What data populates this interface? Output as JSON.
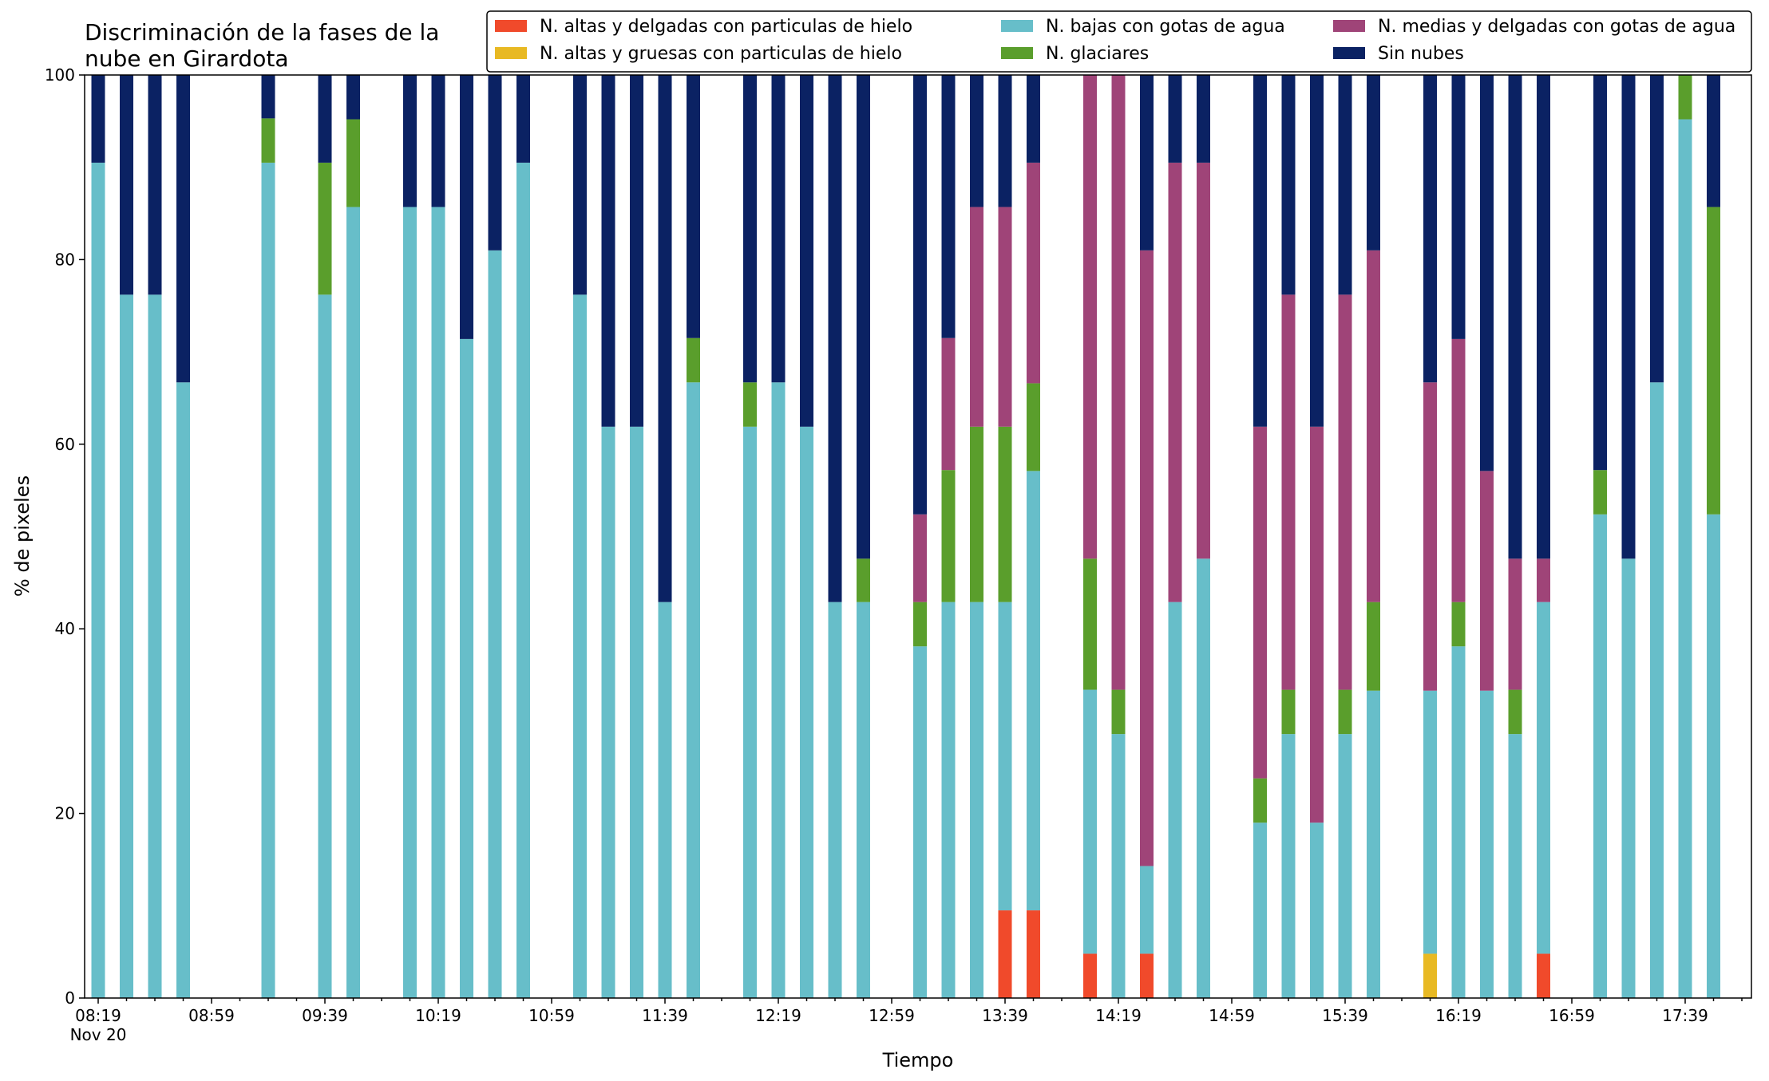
{
  "chart_data": {
    "type": "bar",
    "stacked": true,
    "title_lines": [
      "Discriminación de la fases de la",
      "nube en Girardota"
    ],
    "xlabel": "Tiempo",
    "ylabel": "% de pixeles",
    "ylim": [
      0,
      100
    ],
    "yticks": [
      "0",
      "20",
      "40",
      "60",
      "80",
      "100"
    ],
    "xtick_labels": [
      "08:19",
      "08:59",
      "09:39",
      "10:19",
      "10:59",
      "11:39",
      "12:19",
      "12:59",
      "13:39",
      "14:19",
      "14:59",
      "15:39",
      "16:19",
      "16:59",
      "17:39"
    ],
    "xtick_sublabel": "Nov 20",
    "legend_position": "top-right",
    "series": [
      {
        "name": "N. altas y delgadas con particulas de hielo",
        "color": "#f04a2b"
      },
      {
        "name": "N. altas y gruesas con particulas de hielo",
        "color": "#e8b923"
      },
      {
        "name": "N. bajas con gotas de agua",
        "color": "#67bec9"
      },
      {
        "name": "N. glaciares",
        "color": "#5a9e2c"
      },
      {
        "name": "N. medias y delgadas con gotas de agua",
        "color": "#9f4478"
      },
      {
        "name": "Sin nubes",
        "color": "#0b2263"
      }
    ],
    "bars": [
      {
        "slot": 0,
        "values": [
          0,
          0,
          90.5,
          0,
          0,
          9.5
        ]
      },
      {
        "slot": 1,
        "values": [
          0,
          0,
          76.2,
          0,
          0,
          23.8
        ]
      },
      {
        "slot": 2,
        "values": [
          0,
          0,
          76.2,
          0,
          0,
          23.8
        ]
      },
      {
        "slot": 3,
        "values": [
          0,
          0,
          66.7,
          0,
          0,
          33.3
        ]
      },
      {
        "slot": 6,
        "values": [
          0,
          0,
          90.5,
          4.8,
          0,
          4.7
        ]
      },
      {
        "slot": 8,
        "values": [
          0,
          0,
          76.2,
          14.3,
          0,
          9.5
        ]
      },
      {
        "slot": 9,
        "values": [
          0,
          0,
          85.7,
          9.5,
          0,
          4.8
        ]
      },
      {
        "slot": 11,
        "values": [
          0,
          0,
          85.7,
          0,
          0,
          14.3
        ]
      },
      {
        "slot": 12,
        "values": [
          0,
          0,
          85.7,
          0,
          0,
          14.3
        ]
      },
      {
        "slot": 13,
        "values": [
          0,
          0,
          71.4,
          0,
          0,
          28.6
        ]
      },
      {
        "slot": 14,
        "values": [
          0,
          0,
          81.0,
          0,
          0,
          19.0
        ]
      },
      {
        "slot": 15,
        "values": [
          0,
          0,
          90.5,
          0,
          0,
          9.5
        ]
      },
      {
        "slot": 17,
        "values": [
          0,
          0,
          76.2,
          0,
          0,
          23.8
        ]
      },
      {
        "slot": 18,
        "values": [
          0,
          0,
          61.9,
          0,
          0,
          38.1
        ]
      },
      {
        "slot": 19,
        "values": [
          0,
          0,
          61.9,
          0,
          0,
          38.1
        ]
      },
      {
        "slot": 20,
        "values": [
          0,
          0,
          42.9,
          0,
          0,
          57.1
        ]
      },
      {
        "slot": 21,
        "values": [
          0,
          0,
          66.7,
          4.8,
          0,
          28.5
        ]
      },
      {
        "slot": 23,
        "values": [
          0,
          0,
          61.9,
          4.8,
          0,
          33.3
        ]
      },
      {
        "slot": 24,
        "values": [
          0,
          0,
          66.7,
          0,
          0,
          33.3
        ]
      },
      {
        "slot": 25,
        "values": [
          0,
          0,
          61.9,
          0,
          0,
          38.1
        ]
      },
      {
        "slot": 26,
        "values": [
          0,
          0,
          42.9,
          0,
          0,
          57.1
        ]
      },
      {
        "slot": 27,
        "values": [
          0,
          0,
          42.9,
          4.7,
          0,
          52.4
        ]
      },
      {
        "slot": 29,
        "values": [
          0,
          0,
          38.1,
          4.8,
          9.5,
          47.6
        ]
      },
      {
        "slot": 30,
        "values": [
          0,
          0,
          42.9,
          14.3,
          14.3,
          28.5
        ]
      },
      {
        "slot": 31,
        "values": [
          0,
          0,
          42.9,
          19.0,
          23.8,
          14.3
        ]
      },
      {
        "slot": 32,
        "values": [
          9.5,
          0,
          33.4,
          19.0,
          23.8,
          14.3
        ]
      },
      {
        "slot": 33,
        "values": [
          9.5,
          0,
          47.6,
          9.5,
          23.9,
          9.5
        ]
      },
      {
        "slot": 35,
        "values": [
          4.8,
          0,
          28.6,
          14.2,
          52.4,
          0
        ]
      },
      {
        "slot": 36,
        "values": [
          0,
          0,
          28.6,
          4.8,
          66.6,
          0
        ]
      },
      {
        "slot": 37,
        "values": [
          4.8,
          0,
          9.5,
          0,
          66.7,
          19.0
        ]
      },
      {
        "slot": 38,
        "values": [
          0,
          0,
          42.9,
          0,
          47.6,
          9.5
        ]
      },
      {
        "slot": 39,
        "values": [
          0,
          0,
          47.6,
          0,
          42.9,
          9.5
        ]
      },
      {
        "slot": 41,
        "values": [
          0,
          0,
          19.0,
          4.8,
          38.1,
          38.1
        ]
      },
      {
        "slot": 42,
        "values": [
          0,
          0,
          28.6,
          4.8,
          42.8,
          23.8
        ]
      },
      {
        "slot": 43,
        "values": [
          0,
          0,
          19.0,
          0,
          42.9,
          38.1
        ]
      },
      {
        "slot": 44,
        "values": [
          0,
          0,
          28.6,
          4.8,
          42.8,
          23.8
        ]
      },
      {
        "slot": 45,
        "values": [
          0,
          0,
          33.3,
          9.6,
          38.1,
          19.0
        ]
      },
      {
        "slot": 47,
        "values": [
          0,
          4.8,
          28.5,
          0,
          33.4,
          33.3
        ]
      },
      {
        "slot": 48,
        "values": [
          0,
          0,
          38.1,
          4.8,
          28.5,
          28.6
        ]
      },
      {
        "slot": 49,
        "values": [
          0,
          0,
          33.3,
          0,
          23.8,
          42.9
        ]
      },
      {
        "slot": 50,
        "values": [
          0,
          0,
          28.6,
          4.8,
          14.2,
          52.4
        ]
      },
      {
        "slot": 51,
        "values": [
          4.8,
          0,
          38.1,
          0,
          4.7,
          52.4
        ]
      },
      {
        "slot": 53,
        "values": [
          0,
          0,
          52.4,
          4.8,
          0,
          42.8
        ]
      },
      {
        "slot": 54,
        "values": [
          0,
          0,
          47.6,
          0,
          0,
          52.4
        ]
      },
      {
        "slot": 55,
        "values": [
          0,
          0,
          66.7,
          0,
          0,
          33.3
        ]
      },
      {
        "slot": 56,
        "values": [
          0,
          0,
          95.2,
          4.8,
          0,
          0
        ]
      },
      {
        "slot": 57,
        "values": [
          0,
          0,
          52.4,
          33.3,
          0,
          14.3
        ]
      }
    ]
  }
}
